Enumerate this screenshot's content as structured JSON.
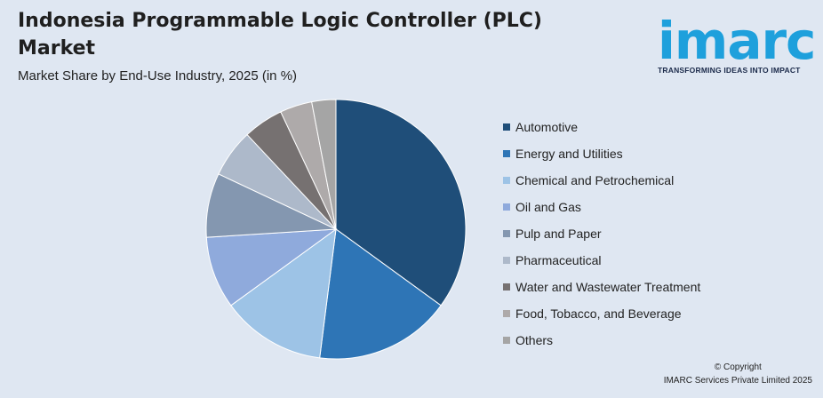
{
  "header": {
    "title": "Indonesia Programmable Logic Controller (PLC) Market",
    "subtitle": "Market Share by End-Use Industry, 2025 (in %)"
  },
  "logo": {
    "brand": "imarc",
    "tagline": "TRANSFORMING IDEAS INTO IMPACT",
    "color": "#1ea0dc",
    "tagline_color": "#1b2a4a"
  },
  "chart_data": {
    "type": "pie",
    "title": "Indonesia Programmable Logic Controller (PLC) Market",
    "subtitle": "Market Share by End-Use Industry, 2025 (in %)",
    "legend_position": "right",
    "start_angle_deg": 0,
    "direction": "clockwise",
    "slices": [
      {
        "label": "Automotive",
        "value": 35,
        "color": "#1f4e79"
      },
      {
        "label": "Energy and Utilities",
        "value": 17,
        "color": "#2e75b6"
      },
      {
        "label": "Chemical and Petrochemical",
        "value": 13,
        "color": "#9dc3e6"
      },
      {
        "label": "Oil and Gas",
        "value": 9,
        "color": "#8faadc"
      },
      {
        "label": "Pulp and Paper",
        "value": 8,
        "color": "#8497b0"
      },
      {
        "label": "Pharmaceutical",
        "value": 6,
        "color": "#adb9ca"
      },
      {
        "label": "Water and Wastewater Treatment",
        "value": 5,
        "color": "#767171"
      },
      {
        "label": "Food, Tobacco, and Beverage",
        "value": 4,
        "color": "#aeaaaa"
      },
      {
        "label": "Others",
        "value": 3,
        "color": "#a5a5a5"
      }
    ]
  },
  "footer": {
    "copyright_line": "© Copyright",
    "company": "IMARC Services Private Limited 2025"
  }
}
